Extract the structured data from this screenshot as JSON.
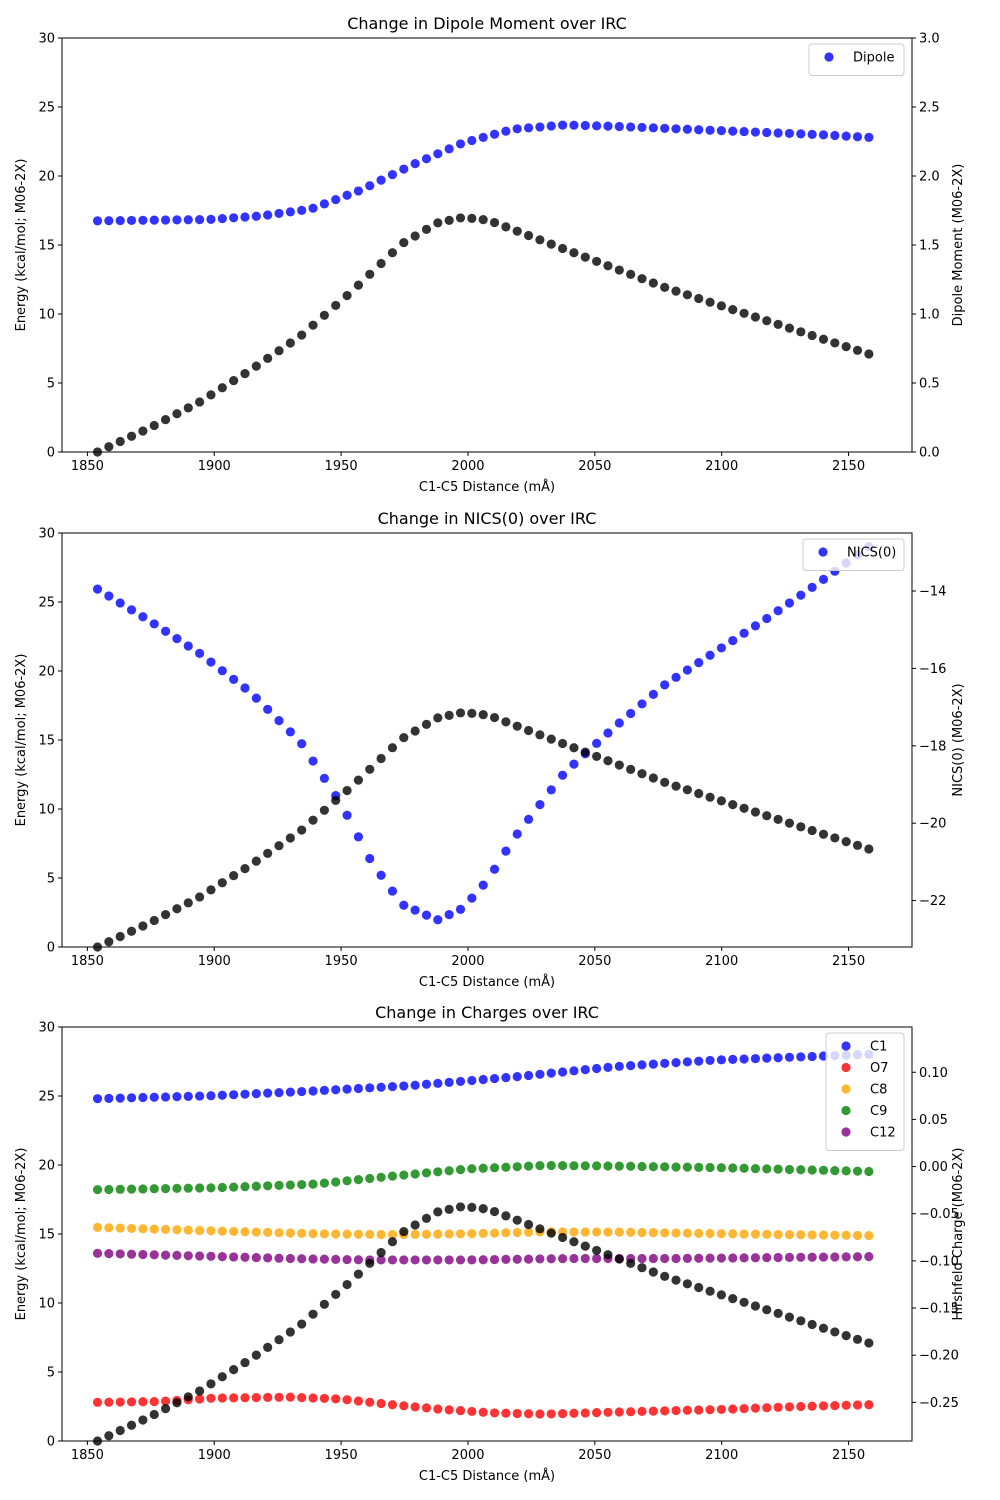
{
  "chart_data": [
    {
      "type": "scatter",
      "title": "Change in Dipole Moment over IRC",
      "xlabel": "C1-C5 Distance (mÅ)",
      "ylabel": "Energy (kcal/mol; M06-2X)",
      "y2label": "Dipole Moment (M06-2X)",
      "xlim": [
        1840,
        2175
      ],
      "ylim": [
        0,
        30
      ],
      "y2lim": [
        0,
        3.0
      ],
      "xticks": [
        1850,
        1900,
        1950,
        2000,
        2050,
        2100,
        2150
      ],
      "yticks": [
        0,
        5,
        10,
        15,
        20,
        25,
        30
      ],
      "y2ticks": [
        0.0,
        0.5,
        1.0,
        1.5,
        2.0,
        2.5,
        3.0
      ],
      "y2tick_labels": [
        "0.0",
        "0.5",
        "1.0",
        "1.5",
        "2.0",
        "2.5",
        "3.0"
      ],
      "legend_position": "top-right",
      "series": [
        {
          "name": "Dipole",
          "axis": "right",
          "color": "#0000ff",
          "points": [
            [
              1854,
              1.675
            ],
            [
              1898,
              1.685
            ],
            [
              1918,
              1.71
            ],
            [
              1938,
              1.76
            ],
            [
              1958,
              1.9
            ],
            [
              1978,
              2.08
            ],
            [
              1998,
              2.24
            ],
            [
              2018,
              2.34
            ],
            [
              2038,
              2.37
            ],
            [
              2058,
              2.36
            ],
            [
              2078,
              2.345
            ],
            [
              2098,
              2.33
            ],
            [
              2118,
              2.315
            ],
            [
              2138,
              2.3
            ],
            [
              2158,
              2.28
            ]
          ]
        },
        {
          "name": "",
          "axis": "left",
          "color": "#000000",
          "points": [
            [
              1854,
              0
            ],
            [
              1874,
              1.7
            ],
            [
              1894,
              3.6
            ],
            [
              1914,
              5.9
            ],
            [
              1934,
              8.4
            ],
            [
              1954,
              11.6
            ],
            [
              1974,
              15.1
            ],
            [
              1988,
              16.6
            ],
            [
              1998,
              17.0
            ],
            [
              2008,
              16.8
            ],
            [
              2018,
              16.1
            ],
            [
              2038,
              14.7
            ],
            [
              2058,
              13.3
            ],
            [
              2078,
              11.9
            ],
            [
              2098,
              10.7
            ],
            [
              2118,
              9.5
            ],
            [
              2138,
              8.3
            ],
            [
              2158,
              7.1
            ]
          ]
        }
      ]
    },
    {
      "type": "scatter",
      "title": "Change in NICS(0) over IRC",
      "xlabel": "C1-C5 Distance (mÅ)",
      "ylabel": "Energy (kcal/mol; M06-2X)",
      "y2label": "NICS(0) (M06-2X)",
      "xlim": [
        1840,
        2175
      ],
      "ylim": [
        0,
        30
      ],
      "y2lim": [
        -23.2,
        -12.5
      ],
      "xticks": [
        1850,
        1900,
        1950,
        2000,
        2050,
        2100,
        2150
      ],
      "yticks": [
        0,
        5,
        10,
        15,
        20,
        25,
        30
      ],
      "y2ticks": [
        -22,
        -20,
        -18,
        -16,
        -14
      ],
      "y2tick_labels": [
        "−22",
        "−20",
        "−18",
        "−16",
        "−14"
      ],
      "legend_position": "top-right",
      "series": [
        {
          "name": "NICS(0)",
          "axis": "right",
          "color": "#0000ff",
          "points": [
            [
              1854,
              -13.95
            ],
            [
              1874,
              -14.75
            ],
            [
              1894,
              -15.6
            ],
            [
              1914,
              -16.6
            ],
            [
              1934,
              -17.9
            ],
            [
              1950,
              -19.5
            ],
            [
              1962,
              -21.0
            ],
            [
              1974,
              -22.1
            ],
            [
              1988,
              -22.5
            ],
            [
              1998,
              -22.2
            ],
            [
              2008,
              -21.45
            ],
            [
              2018,
              -20.4
            ],
            [
              2038,
              -18.7
            ],
            [
              2058,
              -17.5
            ],
            [
              2078,
              -16.4
            ],
            [
              2098,
              -15.55
            ],
            [
              2118,
              -14.7
            ],
            [
              2138,
              -13.8
            ],
            [
              2158,
              -12.85
            ]
          ]
        },
        {
          "name": "",
          "axis": "left",
          "color": "#000000",
          "points": [
            [
              1854,
              0
            ],
            [
              1874,
              1.7
            ],
            [
              1894,
              3.6
            ],
            [
              1914,
              5.9
            ],
            [
              1934,
              8.4
            ],
            [
              1954,
              11.6
            ],
            [
              1974,
              15.1
            ],
            [
              1988,
              16.6
            ],
            [
              1998,
              17.0
            ],
            [
              2008,
              16.8
            ],
            [
              2018,
              16.1
            ],
            [
              2038,
              14.7
            ],
            [
              2058,
              13.3
            ],
            [
              2078,
              11.9
            ],
            [
              2098,
              10.7
            ],
            [
              2118,
              9.5
            ],
            [
              2138,
              8.3
            ],
            [
              2158,
              7.1
            ]
          ]
        }
      ]
    },
    {
      "type": "scatter",
      "title": "Change in Charges over IRC",
      "xlabel": "C1-C5 Distance (mÅ)",
      "ylabel": "Energy (kcal/mol; M06-2X)",
      "y2label": "Hirshfeld Charge (M06-2X)",
      "xlim": [
        1840,
        2175
      ],
      "ylim": [
        0,
        30
      ],
      "y2lim": [
        -0.291,
        0.148
      ],
      "xticks": [
        1850,
        1900,
        1950,
        2000,
        2050,
        2100,
        2150
      ],
      "yticks": [
        0,
        5,
        10,
        15,
        20,
        25,
        30
      ],
      "y2ticks": [
        -0.25,
        -0.2,
        -0.15,
        -0.1,
        -0.05,
        0.0,
        0.05,
        0.1
      ],
      "y2tick_labels": [
        "−0.25",
        "−0.20",
        "−0.15",
        "−0.10",
        "−0.05",
        "0.00",
        "0.05",
        "0.10"
      ],
      "legend_position": "top-right",
      "series": [
        {
          "name": "C1",
          "axis": "right",
          "color": "#0000ff",
          "points": [
            [
              1854,
              0.072
            ],
            [
              1898,
              0.075
            ],
            [
              1938,
              0.08
            ],
            [
              1978,
              0.086
            ],
            [
              2018,
              0.095
            ],
            [
              2058,
              0.106
            ],
            [
              2098,
              0.113
            ],
            [
              2158,
              0.119
            ]
          ]
        },
        {
          "name": "O7",
          "axis": "right",
          "color": "#ff0000",
          "points": [
            [
              1854,
              -0.25
            ],
            [
              1878,
              -0.2492
            ],
            [
              1900,
              -0.2455
            ],
            [
              1930,
              -0.2445
            ],
            [
              1950,
              -0.2465
            ],
            [
              1970,
              -0.2525
            ],
            [
              1990,
              -0.2575
            ],
            [
              2010,
              -0.2612
            ],
            [
              2030,
              -0.2625
            ],
            [
              2060,
              -0.2602
            ],
            [
              2100,
              -0.2575
            ],
            [
              2130,
              -0.2545
            ],
            [
              2158,
              -0.2525
            ]
          ]
        },
        {
          "name": "C8",
          "axis": "right",
          "color": "#ffa500",
          "points": [
            [
              1854,
              -0.0645
            ],
            [
              1900,
              -0.0682
            ],
            [
              1940,
              -0.0712
            ],
            [
              1970,
              -0.0722
            ],
            [
              2000,
              -0.0712
            ],
            [
              2030,
              -0.0692
            ],
            [
              2060,
              -0.0695
            ],
            [
              2100,
              -0.0712
            ],
            [
              2158,
              -0.0732
            ]
          ]
        },
        {
          "name": "C9",
          "axis": "right",
          "color": "#008000",
          "points": [
            [
              1854,
              -0.0245
            ],
            [
              1900,
              -0.0225
            ],
            [
              1940,
              -0.0185
            ],
            [
              1970,
              -0.0102
            ],
            [
              2000,
              -0.0025
            ],
            [
              2030,
              0.0012
            ],
            [
              2060,
              0.0005
            ],
            [
              2100,
              -0.0012
            ],
            [
              2158,
              -0.0052
            ]
          ]
        },
        {
          "name": "C12",
          "axis": "right",
          "color": "#800080",
          "points": [
            [
              1854,
              -0.092
            ],
            [
              1890,
              -0.0945
            ],
            [
              1930,
              -0.0975
            ],
            [
              1960,
              -0.099
            ],
            [
              2000,
              -0.099
            ],
            [
              2040,
              -0.0975
            ],
            [
              2080,
              -0.0975
            ],
            [
              2120,
              -0.0965
            ],
            [
              2158,
              -0.0955
            ]
          ]
        },
        {
          "name": "",
          "axis": "left",
          "color": "#000000",
          "points": [
            [
              1854,
              0
            ],
            [
              1874,
              1.7
            ],
            [
              1894,
              3.6
            ],
            [
              1914,
              5.9
            ],
            [
              1934,
              8.4
            ],
            [
              1954,
              11.6
            ],
            [
              1974,
              15.1
            ],
            [
              1988,
              16.6
            ],
            [
              1998,
              17.0
            ],
            [
              2008,
              16.8
            ],
            [
              2018,
              16.1
            ],
            [
              2038,
              14.7
            ],
            [
              2058,
              13.3
            ],
            [
              2078,
              11.9
            ],
            [
              2098,
              10.7
            ],
            [
              2118,
              9.5
            ],
            [
              2138,
              8.3
            ],
            [
              2158,
              7.1
            ]
          ]
        }
      ]
    }
  ]
}
